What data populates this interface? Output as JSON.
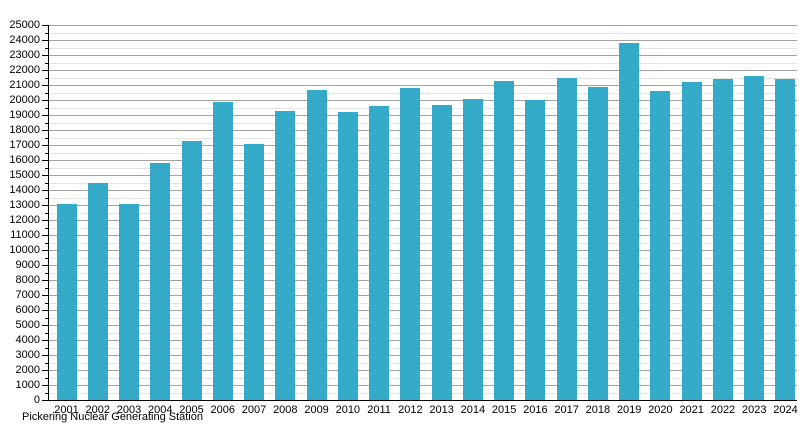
{
  "caption": "Pickering Nuclear Generating Station",
  "colors": {
    "bar": "#33abc8",
    "grid_major": "#a3a3a3",
    "grid_minor": "#e4e4e4",
    "axis": "#000000",
    "text": "#000000",
    "background": "#ffffff"
  },
  "chart_data": {
    "type": "bar",
    "title": "",
    "xlabel": "",
    "ylabel": "",
    "categories": [
      "2001",
      "2002",
      "2003",
      "2004",
      "2005",
      "2006",
      "2007",
      "2008",
      "2009",
      "2010",
      "2011",
      "2012",
      "2013",
      "2014",
      "2015",
      "2016",
      "2017",
      "2018",
      "2019",
      "2020",
      "2021",
      "2022",
      "2023",
      "2024"
    ],
    "values": [
      13100,
      14500,
      13100,
      15800,
      17300,
      19900,
      17100,
      19300,
      20700,
      19200,
      19600,
      20800,
      19700,
      20100,
      21300,
      20000,
      21500,
      20900,
      23800,
      20600,
      21200,
      21400,
      21600,
      21400
    ],
    "ylim": [
      0,
      25000
    ],
    "y_major_step": 1000,
    "y_minor_step": 500,
    "y_tick_labels": [
      "25000",
      "24000",
      "23000",
      "22000",
      "21000",
      "20000",
      "19000",
      "18000",
      "17000",
      "16000",
      "15000",
      "14000",
      "13000",
      "12000",
      "11000",
      "10000",
      "9000",
      "8000",
      "7000",
      "6000",
      "5000",
      "4000",
      "3000",
      "2000",
      "1000",
      "0"
    ],
    "grid": "horizontal-major-and-minor",
    "legend": "none",
    "annotation": "Pickering Nuclear Generating Station"
  }
}
